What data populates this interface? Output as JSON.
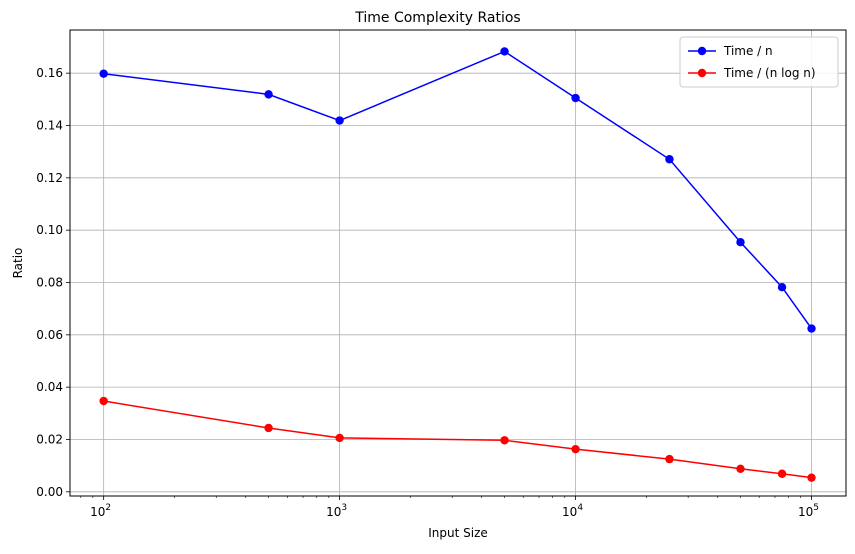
{
  "chart_data": {
    "type": "line",
    "title": "Time Complexity Ratios",
    "xlabel": "Input Size",
    "ylabel": "Ratio",
    "xscale": "log",
    "xlim": [
      72,
      140000
    ],
    "ylim": [
      -0.0016,
      0.1765
    ],
    "xticks": [
      {
        "value": 100,
        "base": "10",
        "exp": "2"
      },
      {
        "value": 1000,
        "base": "10",
        "exp": "3"
      },
      {
        "value": 10000,
        "base": "10",
        "exp": "4"
      },
      {
        "value": 100000,
        "base": "10",
        "exp": "5"
      }
    ],
    "yticks": [
      "0.00",
      "0.02",
      "0.04",
      "0.06",
      "0.08",
      "0.10",
      "0.12",
      "0.14",
      "0.16"
    ],
    "grid": true,
    "legend_position": "top-right",
    "x": [
      100,
      500,
      1000,
      5000,
      10000,
      25000,
      50000,
      75000,
      100000
    ],
    "series": [
      {
        "name": "Time / n",
        "color": "#0000ff",
        "values": [
          0.1598,
          0.1519,
          0.1419,
          0.1683,
          0.1505,
          0.1271,
          0.0954,
          0.0782,
          0.0624
        ]
      },
      {
        "name": "Time / (n log n)",
        "color": "#ff0000",
        "values": [
          0.0347,
          0.0244,
          0.0206,
          0.0197,
          0.0163,
          0.0125,
          0.0088,
          0.0069,
          0.0054
        ]
      }
    ]
  }
}
